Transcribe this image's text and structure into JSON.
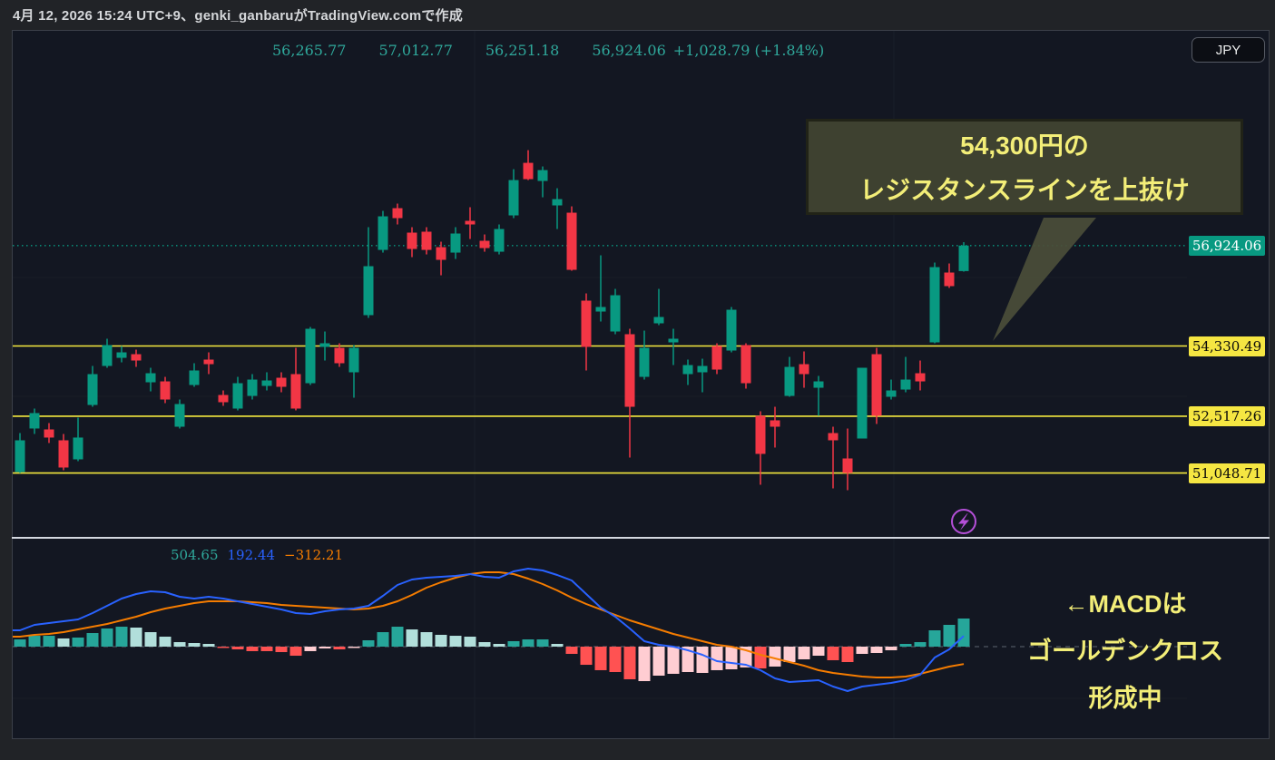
{
  "header": {
    "timestamp": "4月 12, 2026 15:24 UTC+9、genki_ganbaruがTradingView.comで作成",
    "currency_button": "JPY"
  },
  "legend": {
    "open": "56,265.77",
    "high": "57,012.77",
    "low": "56,251.18",
    "close": "56,924.06",
    "change": "+1,028.79 (+1.84%)"
  },
  "macd_legend": {
    "histogram": "504.65",
    "macd": "192.44",
    "signal": "−312.21"
  },
  "annotations": {
    "resistance_callout": {
      "line1": "54,300円の",
      "line2": "レジスタンスラインを上抜け"
    },
    "macd_note": {
      "line1": "←MACDは",
      "line2": "ゴールデンクロス",
      "line3": "形成中"
    }
  },
  "price_scale": {
    "current_price_label": "56,924.06",
    "level_labels": [
      "54,330.49",
      "52,517.26",
      "51,048.71"
    ]
  },
  "icons": {
    "flash": "lightning-boost"
  },
  "colors": {
    "up": "#089981",
    "down": "#f23645",
    "hist_pos": "#26a69a",
    "hist_pos_weak": "#b2dfdb",
    "hist_neg": "#ff5252",
    "hist_neg_weak": "#ffcdd2",
    "macd_line": "#2962ff",
    "signal_line": "#f57c00",
    "level_line": "#f5e93e",
    "level_label_bg": "#f5e642",
    "current_label_bg": "#089981",
    "current_line": "#089981",
    "callout_bg": "#3e4130",
    "callout_text": "#f3ee78",
    "pointer_fill": "#4a4d39",
    "flash_purple": "#b44fd8",
    "legend_value": "#2fa89b",
    "zero_line": "#5d6470"
  },
  "chart_data": {
    "type": "candlestick+macd",
    "title": "",
    "price_levels": [
      54330.49,
      52517.26,
      51048.71
    ],
    "current_price": 56924.06,
    "y_axis": {
      "visible_min": 50100,
      "visible_max": 62400,
      "grid": "faint"
    },
    "ohlc": [
      [
        51074,
        52081,
        51050,
        51894
      ],
      [
        52199,
        52714,
        52058,
        52597
      ],
      [
        52175,
        52339,
        51824,
        51965
      ],
      [
        51894,
        52058,
        51121,
        51191
      ],
      [
        51402,
        52480,
        51355,
        51965
      ],
      [
        52807,
        53815,
        52760,
        53604
      ],
      [
        53815,
        54518,
        53768,
        54354
      ],
      [
        54025,
        54330,
        53908,
        54166
      ],
      [
        54119,
        54236,
        53791,
        53955
      ],
      [
        53393,
        53768,
        53158,
        53627
      ],
      [
        53416,
        53533,
        52854,
        52948
      ],
      [
        52245,
        52948,
        52199,
        52831
      ],
      [
        53323,
        53885,
        53276,
        53698
      ],
      [
        53979,
        54166,
        53604,
        53861
      ],
      [
        53065,
        53182,
        52784,
        52878
      ],
      [
        52714,
        53533,
        52667,
        53369
      ],
      [
        53041,
        53604,
        52948,
        53463
      ],
      [
        53299,
        53651,
        53182,
        53440
      ],
      [
        53510,
        53651,
        53135,
        53276
      ],
      [
        53604,
        54283,
        52667,
        52714
      ],
      [
        53369,
        54822,
        53323,
        54775
      ],
      [
        54307,
        54705,
        53955,
        54401
      ],
      [
        54283,
        54401,
        53791,
        53885
      ],
      [
        53651,
        54354,
        52995,
        54283
      ],
      [
        55127,
        57400,
        55056,
        56392
      ],
      [
        56813,
        57821,
        56743,
        57680
      ],
      [
        57891,
        58009,
        57470,
        57634
      ],
      [
        57259,
        57400,
        56626,
        56837
      ],
      [
        57283,
        57400,
        56696,
        56813
      ],
      [
        56884,
        57025,
        56157,
        56556
      ],
      [
        56743,
        57400,
        56579,
        57236
      ],
      [
        57564,
        57915,
        57095,
        57470
      ],
      [
        57048,
        57212,
        56766,
        56860
      ],
      [
        56766,
        57470,
        56696,
        57353
      ],
      [
        57704,
        58898,
        57634,
        58617
      ],
      [
        59062,
        59390,
        58617,
        58641
      ],
      [
        58594,
        58969,
        58172,
        58875
      ],
      [
        57962,
        58406,
        57353,
        58125
      ],
      [
        57774,
        57938,
        56275,
        56298
      ],
      [
        55502,
        55689,
        53698,
        54307
      ],
      [
        55220,
        56673,
        54963,
        55338
      ],
      [
        54705,
        55806,
        54635,
        55642
      ],
      [
        54635,
        54775,
        51449,
        52760
      ],
      [
        53533,
        54728,
        53463,
        54283
      ],
      [
        54916,
        55806,
        54869,
        55080
      ],
      [
        54424,
        54775,
        53838,
        54518
      ],
      [
        53604,
        53979,
        53323,
        53838
      ],
      [
        53651,
        54002,
        53135,
        53815
      ],
      [
        54330,
        54401,
        53604,
        53721
      ],
      [
        54213,
        55338,
        54166,
        55267
      ],
      [
        54354,
        54401,
        53229,
        53369
      ],
      [
        52527,
        52644,
        50746,
        51543
      ],
      [
        52410,
        52760,
        51707,
        52245
      ],
      [
        53041,
        54049,
        53018,
        53791
      ],
      [
        53861,
        54190,
        53252,
        53604
      ],
      [
        53252,
        53557,
        52527,
        53416
      ],
      [
        52081,
        52245,
        50652,
        51894
      ],
      [
        51425,
        52198,
        50605,
        51050
      ],
      [
        51940,
        53768,
        51940,
        53768
      ],
      [
        54119,
        54283,
        52316,
        52527
      ],
      [
        53018,
        53463,
        52948,
        53182
      ],
      [
        53205,
        54049,
        53135,
        53463
      ],
      [
        53627,
        53955,
        53182,
        53416
      ],
      [
        54424,
        56486,
        54401,
        56368
      ],
      [
        56228,
        56462,
        55830,
        55877
      ],
      [
        56265.77,
        57012.77,
        56251.18,
        56924.06
      ]
    ],
    "macd": {
      "macd_line": [
        293,
        391,
        423,
        456,
        488,
        602,
        733,
        863,
        944,
        993,
        977,
        895,
        863,
        895,
        863,
        814,
        765,
        716,
        667,
        602,
        586,
        635,
        667,
        684,
        733,
        912,
        1107,
        1205,
        1237,
        1254,
        1270,
        1302,
        1254,
        1237,
        1351,
        1400,
        1368,
        1286,
        1188,
        944,
        700,
        537,
        326,
        98,
        33,
        0,
        -65,
        -147,
        -260,
        -293,
        -326,
        -423,
        -570,
        -635,
        -619,
        -602,
        -716,
        -798,
        -716,
        -684,
        -651,
        -602,
        -505,
        -195,
        -49,
        192.44
      ],
      "signal_line": [
        179,
        212,
        228,
        260,
        309,
        358,
        407,
        472,
        537,
        619,
        684,
        733,
        781,
        814,
        814,
        814,
        798,
        781,
        749,
        733,
        716,
        700,
        684,
        667,
        684,
        733,
        814,
        928,
        1058,
        1156,
        1237,
        1302,
        1335,
        1335,
        1302,
        1221,
        1123,
        1009,
        879,
        765,
        667,
        570,
        472,
        391,
        309,
        228,
        163,
        98,
        33,
        0,
        -65,
        -147,
        -212,
        -277,
        -342,
        -423,
        -472,
        -505,
        -537,
        -554,
        -554,
        -537,
        -488,
        -423,
        -358,
        -312.21
      ],
      "histogram": [
        130,
        195,
        195,
        147,
        163,
        244,
        326,
        358,
        342,
        260,
        179,
        81,
        65,
        49,
        -24,
        -49,
        -81,
        -81,
        -98,
        -163,
        -81,
        -33,
        -49,
        -24,
        114,
        260,
        358,
        309,
        260,
        212,
        195,
        179,
        81,
        49,
        98,
        130,
        130,
        49,
        -130,
        -326,
        -423,
        -456,
        -586,
        -619,
        -521,
        -488,
        -456,
        -472,
        -423,
        -407,
        -374,
        -391,
        -358,
        -277,
        -228,
        -163,
        -244,
        -277,
        -130,
        -114,
        -65,
        49,
        81,
        293,
        391,
        504.65
      ],
      "histogram_colors": "gggGggggGGGGGGrrrrrrpprpgggGGGGGGGgggGrrrrrpppppppprpppprrpppggggg"
    }
  }
}
